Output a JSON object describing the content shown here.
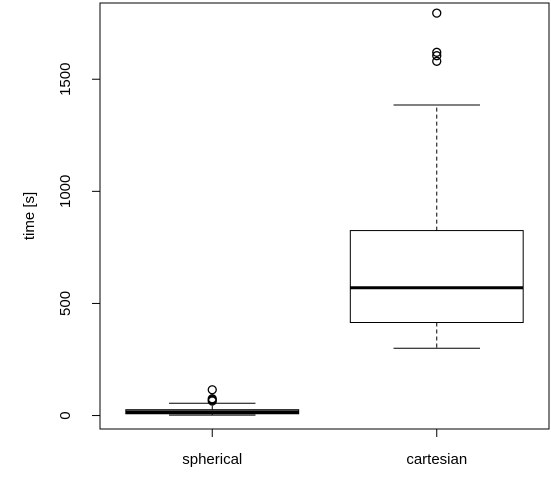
{
  "chart_data": {
    "type": "boxplot",
    "title": "",
    "xlabel": "",
    "ylabel": "time [s]",
    "ylim": [
      -60,
      1840
    ],
    "yticks": [
      0,
      500,
      1000,
      1500
    ],
    "ytick_labels": [
      "0",
      "500",
      "1000",
      "1500"
    ],
    "categories": [
      "spherical",
      "cartesian"
    ],
    "boxes": [
      {
        "name": "spherical",
        "whisker_low": 2,
        "q1": 8,
        "median": 16,
        "q3": 26,
        "whisker_high": 55,
        "outliers": [
          65,
          70,
          75,
          115
        ]
      },
      {
        "name": "cartesian",
        "whisker_low": 300,
        "q1": 415,
        "median": 570,
        "q3": 825,
        "whisker_high": 1385,
        "outliers": [
          1580,
          1605,
          1620,
          1795
        ]
      }
    ],
    "grid": false,
    "legend": "none"
  }
}
